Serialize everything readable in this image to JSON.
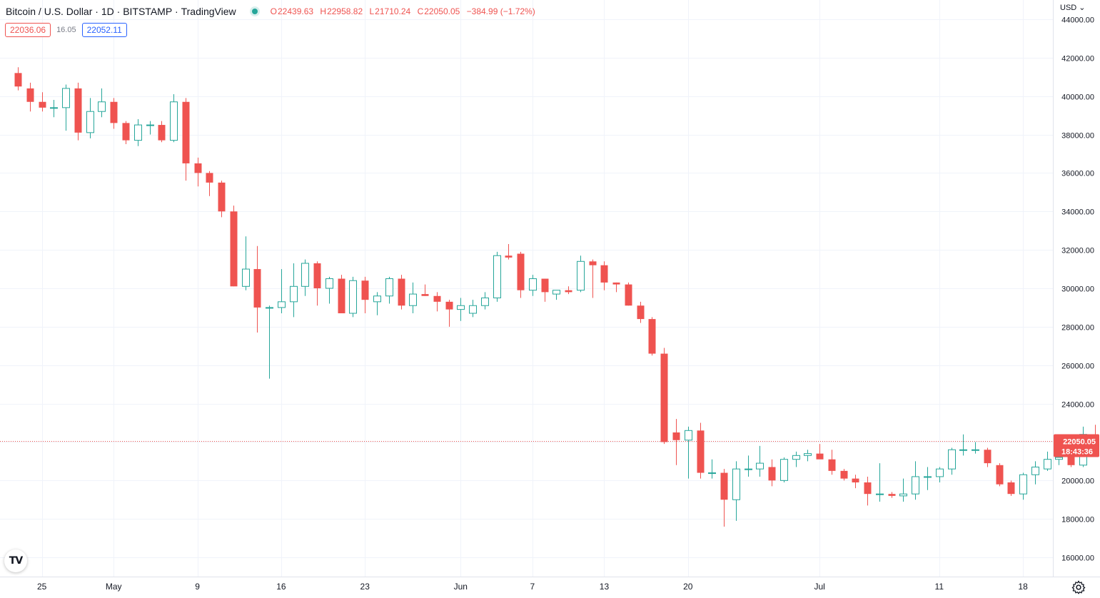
{
  "legend": {
    "symbol": "Bitcoin / U.S. Dollar",
    "interval": "1D",
    "exchange": "BITSTAMP",
    "source": "TradingView",
    "status_color": "#26a69a",
    "open_label": "O",
    "open": "22439.63",
    "high_label": "H",
    "high": "22958.82",
    "low_label": "L",
    "low": "21710.24",
    "close_label": "C",
    "close": "22050.05",
    "change": "−384.99 (−1.72%)"
  },
  "spread": {
    "bid": "22036.06",
    "spread": "16.05",
    "ask": "22052.11"
  },
  "currency": "USD",
  "price_tag": {
    "price": "22050.05",
    "countdown": "18:43:36"
  },
  "colors": {
    "up": "#26a69a",
    "down": "#ef5350",
    "grid": "#f0f3fa",
    "axis_text": "#131722"
  },
  "chart_data": {
    "type": "candlestick",
    "ylim": [
      15000,
      45000
    ],
    "x_range": [
      -1.5,
      86.5
    ],
    "y_ticks": [
      "16000.00",
      "18000.00",
      "20000.00",
      "22000.00",
      "24000.00",
      "26000.00",
      "28000.00",
      "30000.00",
      "32000.00",
      "34000.00",
      "36000.00",
      "38000.00",
      "40000.00",
      "42000.00",
      "44000.00"
    ],
    "x_ticks": [
      {
        "i": 2,
        "label": "25"
      },
      {
        "i": 8,
        "label": "May"
      },
      {
        "i": 15,
        "label": "9"
      },
      {
        "i": 22,
        "label": "16"
      },
      {
        "i": 29,
        "label": "23"
      },
      {
        "i": 37,
        "label": "Jun"
      },
      {
        "i": 43,
        "label": "7"
      },
      {
        "i": 49,
        "label": "13"
      },
      {
        "i": 56,
        "label": "20"
      },
      {
        "i": 67,
        "label": "Jul"
      },
      {
        "i": 77,
        "label": "11"
      },
      {
        "i": 84,
        "label": "18"
      },
      {
        "i": 91,
        "label": "25"
      }
    ],
    "last_price": 22050.05,
    "candles": [
      [
        41200,
        41500,
        40300,
        40500
      ],
      [
        40400,
        40700,
        39200,
        39700
      ],
      [
        39700,
        40200,
        39200,
        39400
      ],
      [
        39400,
        39800,
        38900,
        39400
      ],
      [
        39400,
        40600,
        38200,
        40400
      ],
      [
        40400,
        40700,
        37700,
        38100
      ],
      [
        38100,
        39900,
        37800,
        39200
      ],
      [
        39200,
        40400,
        38900,
        39700
      ],
      [
        39700,
        39900,
        38300,
        38600
      ],
      [
        38600,
        38700,
        37500,
        37700
      ],
      [
        37700,
        38800,
        37400,
        38500
      ],
      [
        38500,
        38700,
        38000,
        38500
      ],
      [
        38500,
        38700,
        37600,
        37700
      ],
      [
        37700,
        40100,
        37600,
        39700
      ],
      [
        39700,
        39900,
        35600,
        36500
      ],
      [
        36500,
        36800,
        35300,
        36000
      ],
      [
        36000,
        36100,
        34800,
        35500
      ],
      [
        35500,
        35600,
        33700,
        34000
      ],
      [
        34000,
        34300,
        30100,
        30100
      ],
      [
        30100,
        32700,
        29900,
        31000
      ],
      [
        31000,
        32200,
        27700,
        29000
      ],
      [
        29000,
        29100,
        25300,
        29000
      ],
      [
        29000,
        31000,
        28700,
        29300
      ],
      [
        29300,
        31300,
        28500,
        30100
      ],
      [
        30100,
        31500,
        29600,
        31300
      ],
      [
        31300,
        31400,
        29100,
        30000
      ],
      [
        30000,
        30600,
        29200,
        30500
      ],
      [
        30500,
        30700,
        28700,
        28700
      ],
      [
        28700,
        30600,
        28500,
        30400
      ],
      [
        30400,
        30600,
        28700,
        29400
      ],
      [
        29300,
        29800,
        28600,
        29600
      ],
      [
        29600,
        30600,
        29200,
        30500
      ],
      [
        30500,
        30700,
        28900,
        29100
      ],
      [
        29100,
        30300,
        28700,
        29700
      ],
      [
        29700,
        30200,
        29600,
        29600
      ],
      [
        29600,
        29800,
        28800,
        29300
      ],
      [
        29300,
        29400,
        28000,
        28900
      ],
      [
        28900,
        29500,
        28300,
        29100
      ],
      [
        28700,
        29400,
        28500,
        29100
      ],
      [
        29100,
        29800,
        28900,
        29500
      ],
      [
        29500,
        31900,
        29300,
        31700
      ],
      [
        31700,
        32300,
        31500,
        31600
      ],
      [
        31800,
        31900,
        29500,
        29900
      ],
      [
        29900,
        30700,
        29600,
        30500
      ],
      [
        30500,
        30500,
        29300,
        29800
      ],
      [
        29700,
        29900,
        29400,
        29900
      ],
      [
        29900,
        30100,
        29700,
        29800
      ],
      [
        29900,
        31700,
        29800,
        31400
      ],
      [
        31400,
        31500,
        29500,
        31200
      ],
      [
        31200,
        31400,
        29900,
        30300
      ],
      [
        30300,
        30300,
        29800,
        30200
      ],
      [
        30200,
        30300,
        29100,
        29100
      ],
      [
        29100,
        29300,
        28200,
        28400
      ],
      [
        28400,
        28500,
        26500,
        26600
      ],
      [
        26600,
        26900,
        21900,
        22000
      ],
      [
        22500,
        23200,
        20800,
        22100
      ],
      [
        22100,
        22800,
        20100,
        22600
      ],
      [
        22600,
        23000,
        20100,
        20400
      ],
      [
        20400,
        21100,
        20100,
        20400
      ],
      [
        20400,
        20600,
        17600,
        19000
      ],
      [
        19000,
        21000,
        17900,
        20600
      ],
      [
        20600,
        21300,
        20200,
        20600
      ],
      [
        20600,
        21800,
        20200,
        20900
      ],
      [
        20700,
        21100,
        19700,
        20000
      ],
      [
        20000,
        21200,
        19900,
        21100
      ],
      [
        21100,
        21500,
        20700,
        21300
      ],
      [
        21300,
        21600,
        21000,
        21400
      ],
      [
        21400,
        21900,
        21200,
        21100
      ],
      [
        21100,
        21600,
        20300,
        20500
      ],
      [
        20500,
        20600,
        20000,
        20100
      ],
      [
        20100,
        20300,
        19600,
        19900
      ],
      [
        19900,
        20200,
        18700,
        19300
      ],
      [
        19300,
        20900,
        18900,
        19300
      ],
      [
        19300,
        19400,
        19100,
        19200
      ],
      [
        19200,
        20100,
        18900,
        19300
      ],
      [
        19300,
        21000,
        19000,
        20200
      ],
      [
        20200,
        20700,
        19500,
        20200
      ],
      [
        20200,
        20700,
        19900,
        20600
      ],
      [
        20600,
        21700,
        20300,
        21600
      ],
      [
        21600,
        22400,
        21300,
        21600
      ],
      [
        21600,
        22000,
        21400,
        21600
      ],
      [
        21600,
        21700,
        20700,
        20900
      ],
      [
        20800,
        20900,
        19700,
        19800
      ],
      [
        19900,
        20000,
        19200,
        19300
      ],
      [
        19300,
        20400,
        19000,
        20300
      ],
      [
        20300,
        21000,
        19800,
        20700
      ],
      [
        20600,
        21500,
        20500,
        21100
      ],
      [
        21100,
        21700,
        20800,
        21200
      ],
      [
        21300,
        21600,
        20700,
        20800
      ],
      [
        20800,
        22800,
        20700,
        22400
      ],
      [
        22400,
        22900,
        21700,
        22050
      ]
    ]
  }
}
